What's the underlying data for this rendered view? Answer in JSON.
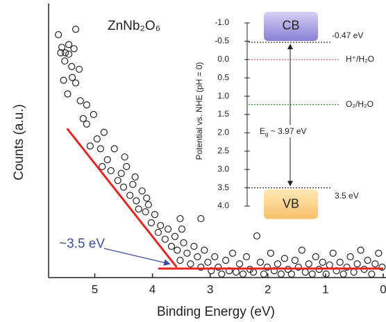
{
  "chart_data": [
    {
      "type": "scatter",
      "title": "ZnNb₂O₆",
      "xlabel": "Binding Energy (eV)",
      "ylabel": "Counts (a.u.)",
      "xlim": [
        5.8,
        0
      ],
      "ylim": [
        0,
        100
      ],
      "xticks": [
        5,
        4,
        3,
        2,
        1,
        0
      ],
      "marker_color": "#222",
      "x": [
        5.63,
        5.33,
        5.57,
        5.51,
        5.59,
        5.45,
        5.52,
        5.4,
        5.45,
        5.36,
        5.54,
        5.47,
        5.39,
        5.33,
        5.27,
        5.25,
        5.14,
        5.2,
        5.14,
        5.02,
        4.96,
        5.08,
        4.9,
        4.84,
        4.78,
        4.87,
        4.72,
        4.66,
        4.6,
        4.54,
        4.5,
        4.45,
        4.39,
        4.34,
        4.28,
        4.24,
        4.18,
        4.12,
        4.07,
        4.02,
        3.96,
        3.9,
        3.86,
        3.78,
        3.73,
        3.67,
        3.61,
        3.57,
        3.52,
        3.46,
        3.4,
        3.34,
        3.28,
        3.22,
        3.16,
        3.1,
        3.04,
        2.98,
        2.92,
        2.86,
        2.8,
        2.73,
        2.67,
        2.61,
        2.55,
        2.49,
        2.43,
        2.37,
        2.31,
        2.25,
        2.19,
        2.13,
        2.07,
        2.01,
        1.95,
        1.89,
        1.83,
        1.77,
        1.71,
        1.65,
        1.59,
        1.53,
        1.47,
        1.41,
        1.35,
        1.29,
        1.23,
        1.17,
        1.11,
        1.05,
        0.99,
        0.93,
        0.87,
        0.81,
        0.75,
        0.69,
        0.63,
        0.57,
        0.51,
        0.45,
        0.39,
        0.33,
        0.27,
        0.2,
        0.14,
        0.08,
        0.02,
        4.3,
        4.48,
        4.1,
        3.52,
        3.16,
        3.49
      ],
      "y": [
        88.6,
        90.6,
        84,
        82,
        82,
        81.5,
        79,
        77,
        85,
        83.5,
        72,
        67,
        73,
        71,
        76,
        64.5,
        63,
        58,
        56,
        59.5,
        50.6,
        48,
        47,
        53,
        43,
        40.5,
        39,
        47,
        35.4,
        38,
        33,
        40.5,
        30,
        34,
        28,
        25,
        31.6,
        24,
        26.6,
        20,
        23,
        16.5,
        19,
        14,
        17.7,
        11.4,
        15,
        10,
        6.3,
        12.7,
        8.9,
        5,
        11.4,
        7.6,
        3.8,
        10,
        5.6,
        2.5,
        7.6,
        3.8,
        1.3,
        6.3,
        2.5,
        8.9,
        2,
        5,
        1.3,
        7.6,
        3,
        2,
        15.2,
        5.6,
        1.3,
        3.8,
        8.9,
        2.5,
        5,
        1.3,
        7,
        3,
        1.3,
        6.3,
        3.8,
        10,
        2,
        5,
        1.3,
        7.6,
        3,
        5.6,
        1.3,
        4.6,
        8.9,
        2.5,
        5.6,
        1.3,
        3.8,
        7.6,
        2,
        5,
        10,
        3,
        6.3,
        1.3,
        5,
        8.9,
        3.8,
        36.7,
        44,
        29,
        21.5,
        21.5,
        17.7
      ],
      "fit_lines": [
        {
          "color": "#e8231f",
          "x": [
            5.48,
            3.58
          ],
          "y": [
            54.4,
            3.8
          ]
        },
        {
          "color": "#e8231f",
          "x": [
            3.9,
            0
          ],
          "y": [
            3.3,
            3.3
          ]
        }
      ],
      "annotation": {
        "text": "~3.5 eV",
        "color": "#3c4ea0",
        "x": 3.7,
        "y": 5
      }
    },
    {
      "type": "band-diagram",
      "ylabel": "Potential vs. NHE (pH = 0)",
      "ylim": [
        -1.0,
        4.0
      ],
      "inverted": true,
      "yticks": [
        {
          "value": -1.0,
          "label": "-1.0"
        },
        -0.5,
        {
          "value": 0.0,
          "label": "0.0"
        },
        0.5,
        {
          "value": 1.0,
          "label": "1.0"
        },
        1.5,
        {
          "value": 2.0,
          "label": "2.0"
        },
        2.5,
        {
          "value": 3.0,
          "label": "3.0"
        },
        3.5,
        {
          "value": 4.0,
          "label": "4.0"
        }
      ],
      "levels": [
        {
          "name": "-0.47 eV",
          "value": -0.47,
          "color": "#333"
        },
        {
          "name": "H⁺/H₂O",
          "value": 0,
          "color": "#e07070"
        },
        {
          "name": "O₂/H₂O",
          "value": 1.23,
          "color": "#20a020"
        },
        {
          "name": "3.5 eV",
          "value": 3.5,
          "color": "#333"
        }
      ],
      "cb_label": "CB",
      "vb_label": "VB",
      "gap_label": {
        "base": "E",
        "sub": "g",
        "text": " ~ 3.97 eV"
      }
    }
  ]
}
